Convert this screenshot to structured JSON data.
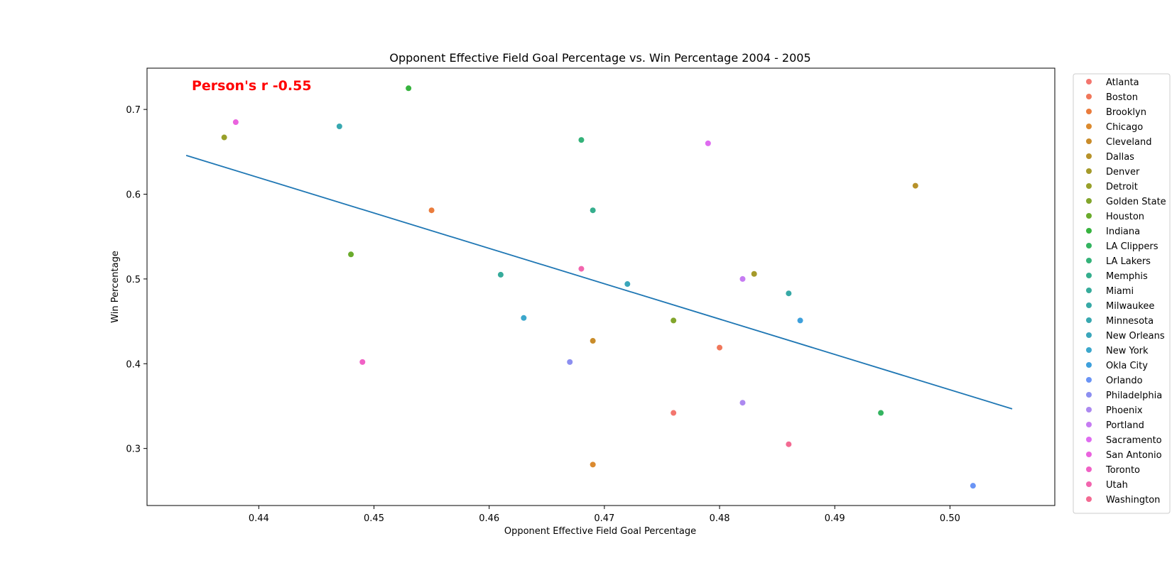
{
  "chart_data": {
    "type": "scatter",
    "title": "Opponent Effective Field Goal Percentage vs. Win Percentage 2004 - 2005",
    "xlabel": "Opponent Effective Field Goal Percentage",
    "ylabel": "Win Percentage",
    "xlim": [
      0.4303,
      0.5091
    ],
    "ylim": [
      0.2327,
      0.7487
    ],
    "xticks": [
      0.44,
      0.45,
      0.46,
      0.47,
      0.48,
      0.49,
      0.5
    ],
    "xtick_labels": [
      "0.44",
      "0.45",
      "0.46",
      "0.47",
      "0.48",
      "0.49",
      "0.50"
    ],
    "yticks": [
      0.3,
      0.4,
      0.5,
      0.6,
      0.7
    ],
    "ytick_labels": [
      "0.3",
      "0.4",
      "0.5",
      "0.6",
      "0.7"
    ],
    "annotation": "Person's r -0.55",
    "annotation_color": "#ff0000",
    "regression_line": {
      "x": [
        0.4337,
        0.5054
      ],
      "y": [
        0.6458,
        0.3467
      ],
      "color": "#1f77b4"
    },
    "legend_position": "right, outside plot",
    "series": [
      {
        "name": "Atlanta",
        "color": "#f3766e",
        "x": 0.476,
        "y": 0.342
      },
      {
        "name": "Boston",
        "color": "#f0775a",
        "x": 0.48,
        "y": 0.419
      },
      {
        "name": "Brooklyn",
        "color": "#ea7c3c",
        "x": 0.455,
        "y": 0.581
      },
      {
        "name": "Chicago",
        "color": "#db8a2f",
        "x": 0.469,
        "y": 0.281
      },
      {
        "name": "Cleveland",
        "color": "#c98c2a",
        "x": 0.469,
        "y": 0.427
      },
      {
        "name": "Dallas",
        "color": "#b7922a",
        "x": 0.497,
        "y": 0.61
      },
      {
        "name": "Denver",
        "color": "#a59a2a",
        "x": 0.483,
        "y": 0.506
      },
      {
        "name": "Detroit",
        "color": "#98a02a",
        "x": 0.437,
        "y": 0.667
      },
      {
        "name": "Golden State",
        "color": "#82a52b",
        "x": 0.476,
        "y": 0.451
      },
      {
        "name": "Houston",
        "color": "#6aab2c",
        "x": 0.448,
        "y": 0.529
      },
      {
        "name": "Indiana",
        "color": "#36b33e",
        "x": 0.453,
        "y": 0.725
      },
      {
        "name": "LA Clippers",
        "color": "#34b460",
        "x": 0.494,
        "y": 0.342
      },
      {
        "name": "LA Lakers",
        "color": "#34b279",
        "x": 0.468,
        "y": 0.664
      },
      {
        "name": "Memphis",
        "color": "#35ae8d",
        "x": 0.469,
        "y": 0.581
      },
      {
        "name": "Miami",
        "color": "#36ab9b",
        "x": 0.461,
        "y": 0.505
      },
      {
        "name": "Milwaukee",
        "color": "#37a9a6",
        "x": 0.486,
        "y": 0.483
      },
      {
        "name": "Minnesota",
        "color": "#38a8b0",
        "x": 0.447,
        "y": 0.68
      },
      {
        "name": "New Orleans",
        "color": "#3aa6bb",
        "x": 0.472,
        "y": 0.494
      },
      {
        "name": "New York",
        "color": "#3ca7cc",
        "x": 0.463,
        "y": 0.454
      },
      {
        "name": "Okla City",
        "color": "#3ea0dc",
        "x": 0.487,
        "y": 0.451
      },
      {
        "name": "Orlando",
        "color": "#6a94f5",
        "x": 0.502,
        "y": 0.256
      },
      {
        "name": "Philadelphia",
        "color": "#8c8ff0",
        "x": 0.467,
        "y": 0.402
      },
      {
        "name": "Phoenix",
        "color": "#ac89f0",
        "x": 0.482,
        "y": 0.354
      },
      {
        "name": "Portland",
        "color": "#c67cf2",
        "x": 0.482,
        "y": 0.5
      },
      {
        "name": "Sacramento",
        "color": "#df6cf0",
        "x": 0.479,
        "y": 0.66
      },
      {
        "name": "San Antonio",
        "color": "#ea63de",
        "x": 0.438,
        "y": 0.685
      },
      {
        "name": "Toronto",
        "color": "#f061c5",
        "x": 0.449,
        "y": 0.402
      },
      {
        "name": "Utah",
        "color": "#f265ae",
        "x": 0.468,
        "y": 0.512
      },
      {
        "name": "Washington",
        "color": "#f36a92",
        "x": 0.486,
        "y": 0.305
      }
    ]
  }
}
